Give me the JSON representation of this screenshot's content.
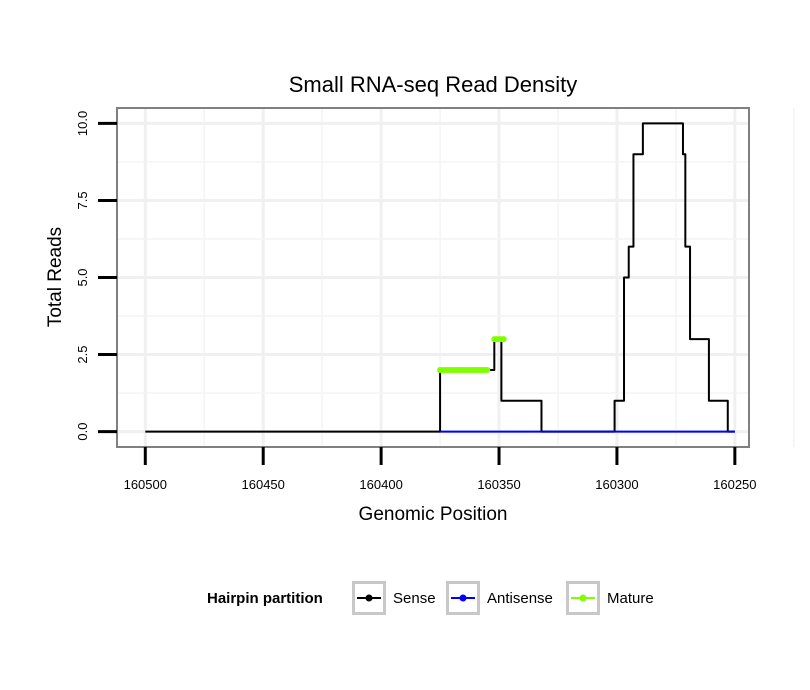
{
  "chart_data": {
    "type": "line",
    "title": "Small RNA-seq Read Density",
    "xlabel": "Genomic Position",
    "ylabel": "Total Reads",
    "xlim": [
      160512,
      160244
    ],
    "ylim": [
      -0.5,
      10.5
    ],
    "x_reversed": true,
    "xticks": [
      160500,
      160450,
      160400,
      160350,
      160300,
      160250
    ],
    "yticks": [
      0.0,
      2.5,
      5.0,
      7.5,
      10.0
    ],
    "ytick_labels": [
      "0.0",
      "2.5",
      "5.0",
      "7.5",
      "10.0"
    ],
    "grid": true,
    "legend": {
      "title": "Hairpin partition",
      "position": "bottom",
      "entries": [
        {
          "name": "Sense",
          "color": "#000000"
        },
        {
          "name": "Antisense",
          "color": "#0000ff"
        },
        {
          "name": "Mature",
          "color": "#7fff00"
        }
      ]
    },
    "series": [
      {
        "name": "Sense",
        "color": "#000000",
        "x": [
          160500,
          160375,
          160375,
          160356,
          160356,
          160352,
          160352,
          160349,
          160349,
          160332,
          160332,
          160331,
          160331,
          160301,
          160301,
          160299,
          160299,
          160297,
          160297,
          160295,
          160295,
          160293,
          160293,
          160292,
          160292,
          160289,
          160289,
          160286,
          160286,
          160272,
          160272,
          160271,
          160271,
          160269,
          160269,
          160268,
          160268,
          160261,
          160261,
          160253,
          160253,
          160250
        ],
        "y": [
          0,
          0,
          2,
          2,
          2,
          2,
          3,
          3,
          1,
          1,
          0,
          0,
          0,
          0,
          1,
          1,
          1,
          1,
          5,
          5,
          6,
          6,
          9,
          9,
          9,
          9,
          10,
          10,
          10,
          10,
          9,
          9,
          6,
          6,
          3,
          3,
          3,
          3,
          1,
          1,
          0,
          0
        ]
      },
      {
        "name": "Antisense",
        "color": "#0000ff",
        "x": [
          160375,
          160250
        ],
        "y": [
          0,
          0
        ]
      },
      {
        "name": "Mature",
        "color": "#7fff00",
        "x": [
          160375,
          160374,
          160373,
          160372,
          160371,
          160370,
          160369,
          160368,
          160367,
          160366,
          160365,
          160364,
          160363,
          160362,
          160361,
          160360,
          160359,
          160358,
          160357,
          160356,
          160355,
          160352,
          160351,
          160350,
          160349,
          160348
        ],
        "y": [
          2,
          2,
          2,
          2,
          2,
          2,
          2,
          2,
          2,
          2,
          2,
          2,
          2,
          2,
          2,
          2,
          2,
          2,
          2,
          2,
          2,
          3,
          3,
          3,
          3,
          3
        ]
      }
    ]
  }
}
